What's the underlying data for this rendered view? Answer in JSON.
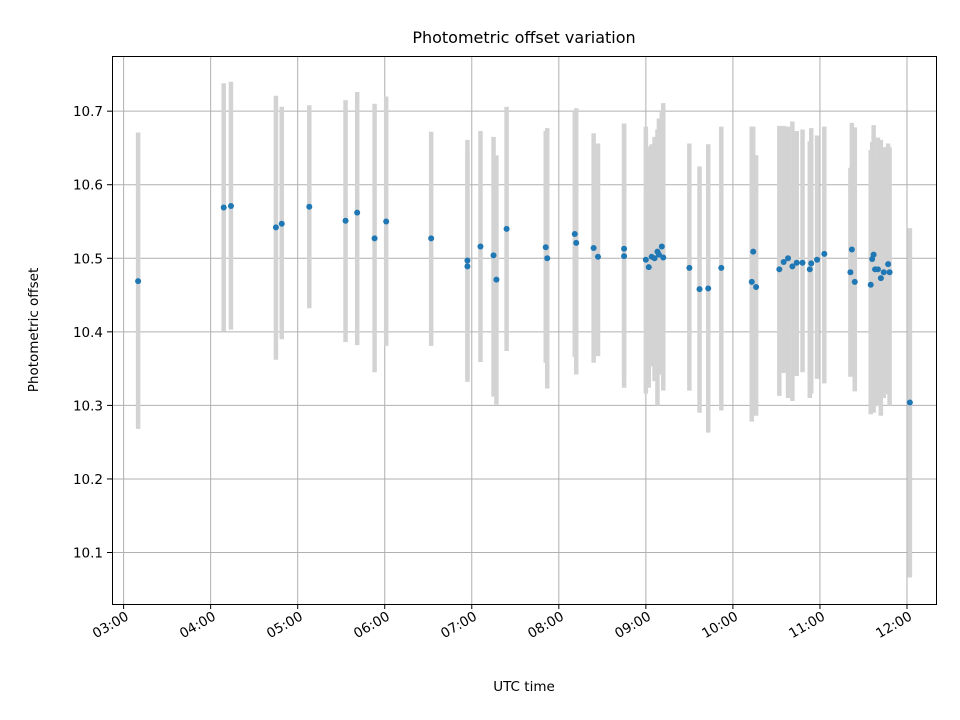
{
  "chart_data": {
    "type": "scatter",
    "title": "Photometric offset variation",
    "xlabel": "UTC time",
    "ylabel": "Photometric offset",
    "grid": true,
    "xlim": [
      "02:52",
      "12:20"
    ],
    "ylim": [
      10.03,
      10.775
    ],
    "x_ticks": [
      "03:00",
      "04:00",
      "05:00",
      "06:00",
      "07:00",
      "08:00",
      "09:00",
      "10:00",
      "11:00",
      "12:00"
    ],
    "y_ticks": [
      "10.1",
      "10.2",
      "10.3",
      "10.4",
      "10.5",
      "10.6",
      "10.7"
    ],
    "marker_color": "#1f77b4",
    "errorbar_color": "#d3d3d3",
    "series": [
      {
        "x": [
          "03:10",
          "04:09",
          "04:14",
          "04:45",
          "04:49",
          "05:08",
          "05:33",
          "05:41",
          "05:53",
          "06:01",
          "06:32",
          "06:57",
          "06:57",
          "07:06",
          "07:15",
          "07:17",
          "07:24",
          "07:51",
          "07:52",
          "08:11",
          "08:12",
          "08:24",
          "08:27",
          "08:45",
          "08:45",
          "09:00",
          "09:02",
          "09:04",
          "09:06",
          "09:08",
          "09:09",
          "09:11",
          "09:12",
          "09:30",
          "09:37",
          "09:43",
          "09:52",
          "10:13",
          "10:14",
          "10:16",
          "10:32",
          "10:35",
          "10:38",
          "10:41",
          "10:44",
          "10:48",
          "10:53",
          "10:54",
          "10:58",
          "11:03",
          "11:21",
          "11:22",
          "11:24",
          "11:35",
          "11:36",
          "11:37",
          "11:38",
          "11:40",
          "11:42",
          "11:44",
          "11:47",
          "11:48",
          "12:02"
        ],
        "y": [
          10.469,
          10.569,
          10.571,
          10.542,
          10.547,
          10.57,
          10.551,
          10.562,
          10.527,
          10.55,
          10.527,
          10.489,
          10.497,
          10.516,
          10.504,
          10.471,
          10.54,
          10.515,
          10.5,
          10.533,
          10.521,
          10.514,
          10.502,
          10.513,
          10.503,
          10.498,
          10.488,
          10.502,
          10.5,
          10.509,
          10.505,
          10.516,
          10.501,
          10.487,
          10.458,
          10.459,
          10.487,
          10.468,
          10.509,
          10.461,
          10.485,
          10.495,
          10.5,
          10.489,
          10.494,
          10.494,
          10.485,
          10.493,
          10.498,
          10.506,
          10.481,
          10.512,
          10.468,
          10.464,
          10.499,
          10.505,
          10.485,
          10.485,
          10.473,
          10.481,
          10.492,
          10.481,
          10.304
        ],
        "err_low": [
          10.268,
          10.401,
          10.403,
          10.362,
          10.39,
          10.432,
          10.386,
          10.382,
          10.345,
          10.381,
          10.381,
          10.334,
          10.332,
          10.359,
          10.312,
          10.301,
          10.374,
          10.358,
          10.323,
          10.366,
          10.342,
          10.358,
          10.367,
          10.343,
          10.324,
          10.316,
          10.324,
          10.353,
          10.333,
          10.3,
          10.342,
          10.345,
          10.32,
          10.32,
          10.29,
          10.263,
          10.293,
          10.278,
          10.346,
          10.286,
          10.313,
          10.344,
          10.31,
          10.306,
          10.34,
          10.345,
          10.31,
          10.316,
          10.336,
          10.33,
          10.339,
          10.34,
          10.319,
          10.288,
          10.34,
          10.29,
          10.304,
          10.299,
          10.286,
          10.31,
          10.315,
          10.3,
          10.066
        ],
        "err_high": [
          10.671,
          10.738,
          10.74,
          10.721,
          10.706,
          10.708,
          10.715,
          10.726,
          10.71,
          10.72,
          10.672,
          10.643,
          10.661,
          10.673,
          10.665,
          10.64,
          10.706,
          10.673,
          10.677,
          10.7,
          10.704,
          10.67,
          10.656,
          10.683,
          10.683,
          10.679,
          10.652,
          10.655,
          10.665,
          10.675,
          10.69,
          10.7,
          10.711,
          10.656,
          10.625,
          10.655,
          10.679,
          10.679,
          10.679,
          10.64,
          10.68,
          10.68,
          10.679,
          10.686,
          10.673,
          10.675,
          10.659,
          10.677,
          10.667,
          10.679,
          10.623,
          10.684,
          10.678,
          10.647,
          10.658,
          10.681,
          10.63,
          10.664,
          10.661,
          10.651,
          10.656,
          10.651,
          10.541
        ]
      }
    ]
  }
}
